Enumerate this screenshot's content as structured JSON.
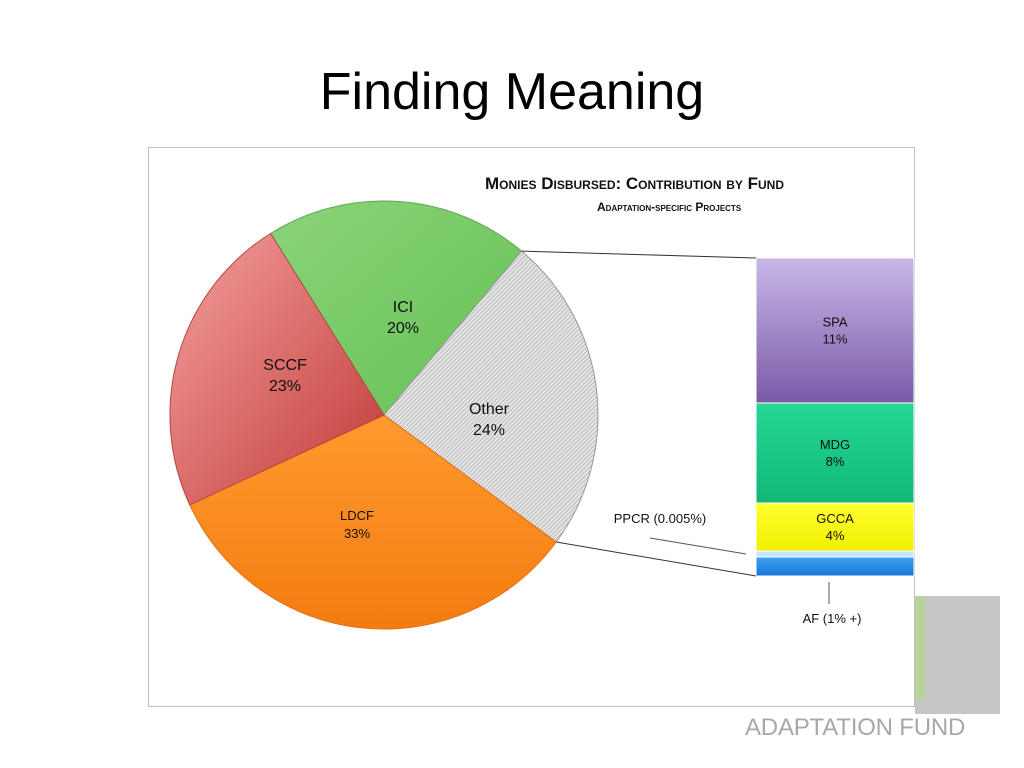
{
  "slide": {
    "title": "Finding Meaning",
    "watermark_text": "ADAPTATION FUND"
  },
  "chart_data": {
    "type": "pie",
    "title": "Monies Disbursed: Contribution by Fund",
    "subtitle": "Adaptation-specific Projects",
    "slices": [
      {
        "label": "ICI",
        "value": 20,
        "value_label": "20%",
        "color": "#77cc66"
      },
      {
        "label": "Other",
        "value": 24,
        "value_label": "24%",
        "color": "#d6d6d6"
      },
      {
        "label": "LDCF",
        "value": 33,
        "value_label": "33%",
        "color": "#f8861e"
      },
      {
        "label": "SCCF",
        "value": 23,
        "value_label": "23%",
        "color": "#d9605c"
      }
    ],
    "breakdown": {
      "of": "Other",
      "type": "stacked-bar",
      "segments": [
        {
          "label": "SPA",
          "value": 11,
          "value_label": "11%",
          "color": "#9a80c8"
        },
        {
          "label": "MDG",
          "value": 8,
          "value_label": "8%",
          "color": "#1fd088"
        },
        {
          "label": "GCCA",
          "value": 4,
          "value_label": "4%",
          "color": "#ffff22"
        },
        {
          "label": "PPCR",
          "value": 0.005,
          "value_label": "PPCR (0.005%)",
          "color": "#c8e4ff"
        },
        {
          "label": "AF",
          "value": 1,
          "value_label": "AF (1% +)",
          "color": "#2b8fe8"
        }
      ]
    }
  }
}
